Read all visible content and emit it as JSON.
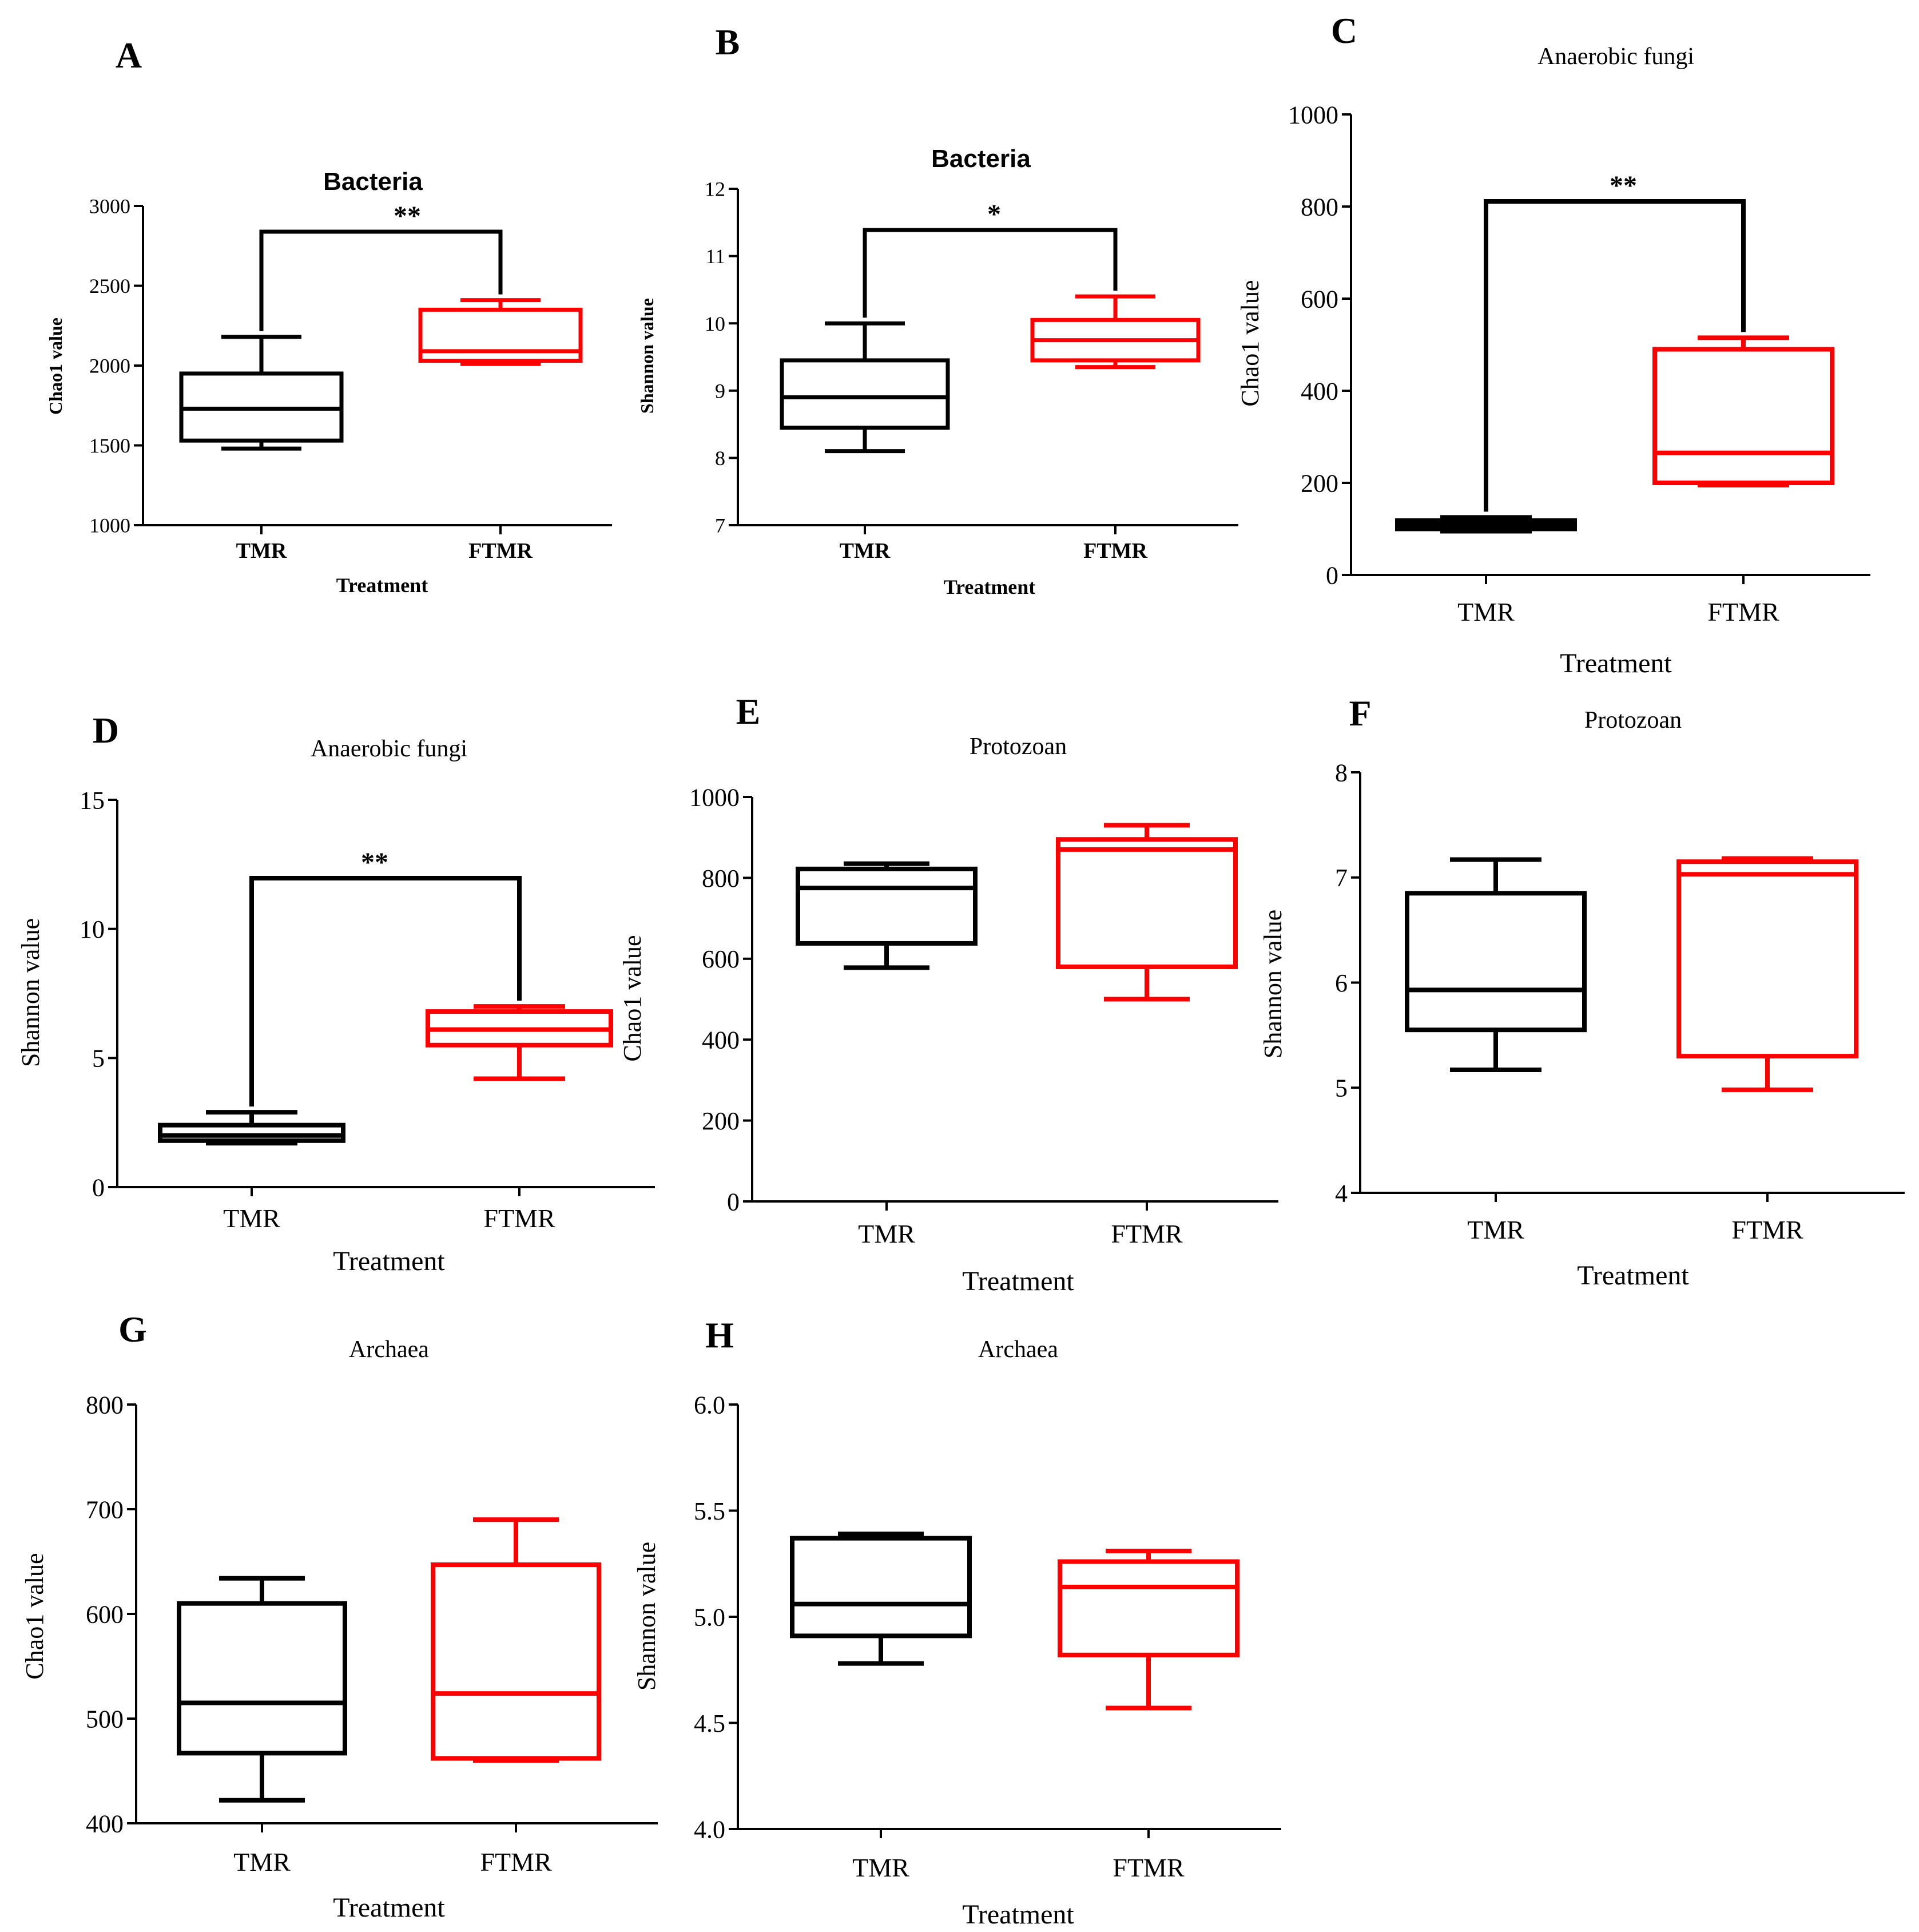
{
  "chart_data": [
    {
      "panel": "A",
      "type": "box",
      "title": "Bacteria",
      "xlabel": "Treatment",
      "ylabel": "Chao1 value",
      "ylim": [
        1000,
        3000
      ],
      "yticks": [
        1000,
        1500,
        2000,
        2500,
        3000
      ],
      "categories": [
        "TMR",
        "FTMR"
      ],
      "boxes": [
        {
          "category": "TMR",
          "color": "#000000",
          "min": 1480,
          "q1": 1530,
          "median": 1730,
          "q3": 1950,
          "max": 2180
        },
        {
          "category": "FTMR",
          "color": "#ff0000",
          "min": 2010,
          "q1": 2030,
          "median": 2090,
          "q3": 2350,
          "max": 2410
        }
      ],
      "significance": "**"
    },
    {
      "panel": "B",
      "type": "box",
      "title": "Bacteria",
      "xlabel": "Treatment",
      "ylabel": "Shannon value",
      "ylim": [
        7,
        12
      ],
      "yticks": [
        7,
        8,
        9,
        10,
        11,
        12
      ],
      "categories": [
        "TMR",
        "FTMR"
      ],
      "boxes": [
        {
          "category": "TMR",
          "color": "#000000",
          "min": 8.1,
          "q1": 8.45,
          "median": 8.9,
          "q3": 9.45,
          "max": 10.0
        },
        {
          "category": "FTMR",
          "color": "#ff0000",
          "min": 9.35,
          "q1": 9.45,
          "median": 9.75,
          "q3": 10.05,
          "max": 10.4
        }
      ],
      "significance": "*"
    },
    {
      "panel": "C",
      "type": "box",
      "title": "Anaerobic fungi",
      "xlabel": "Treatment",
      "ylabel": "Chao1 value",
      "ylim": [
        0,
        1000
      ],
      "yticks": [
        0,
        200,
        400,
        600,
        800,
        1000
      ],
      "categories": [
        "TMR",
        "FTMR"
      ],
      "boxes": [
        {
          "category": "TMR",
          "color": "#000000",
          "min": 95,
          "q1": 100,
          "median": 110,
          "q3": 118,
          "max": 125
        },
        {
          "category": "FTMR",
          "color": "#ff0000",
          "min": 195,
          "q1": 200,
          "median": 265,
          "q3": 490,
          "max": 515
        }
      ],
      "significance": "**"
    },
    {
      "panel": "D",
      "type": "box",
      "title": "Anaerobic fungi",
      "xlabel": "Treatment",
      "ylabel": "Shannon value",
      "ylim": [
        0,
        15
      ],
      "yticks": [
        0,
        5,
        10,
        15
      ],
      "categories": [
        "TMR",
        "FTMR"
      ],
      "boxes": [
        {
          "category": "TMR",
          "color": "#000000",
          "min": 1.7,
          "q1": 1.8,
          "median": 2.0,
          "q3": 2.4,
          "max": 2.9
        },
        {
          "category": "FTMR",
          "color": "#ff0000",
          "min": 4.2,
          "q1": 5.5,
          "median": 6.1,
          "q3": 6.8,
          "max": 7.0
        }
      ],
      "significance": "**"
    },
    {
      "panel": "E",
      "type": "box",
      "title": "Protozoan",
      "xlabel": "Treatment",
      "ylabel": "Chao1 value",
      "ylim": [
        0,
        1000
      ],
      "yticks": [
        0,
        200,
        400,
        600,
        800,
        1000
      ],
      "categories": [
        "TMR",
        "FTMR"
      ],
      "boxes": [
        {
          "category": "TMR",
          "color": "#000000",
          "min": 578,
          "q1": 638,
          "median": 775,
          "q3": 822,
          "max": 835
        },
        {
          "category": "FTMR",
          "color": "#ff0000",
          "min": 500,
          "q1": 580,
          "median": 870,
          "q3": 895,
          "max": 930
        }
      ],
      "significance": ""
    },
    {
      "panel": "F",
      "type": "box",
      "title": "Protozoan",
      "xlabel": "Treatment",
      "ylabel": "Shannon value",
      "ylim": [
        4,
        8
      ],
      "yticks": [
        4,
        5,
        6,
        7,
        8
      ],
      "categories": [
        "TMR",
        "FTMR"
      ],
      "boxes": [
        {
          "category": "TMR",
          "color": "#000000",
          "min": 5.17,
          "q1": 5.55,
          "median": 5.93,
          "q3": 6.85,
          "max": 7.17
        },
        {
          "category": "FTMR",
          "color": "#ff0000",
          "min": 4.98,
          "q1": 5.3,
          "median": 7.03,
          "q3": 7.15,
          "max": 7.18
        }
      ],
      "significance": ""
    },
    {
      "panel": "G",
      "type": "box",
      "title": "Archaea",
      "xlabel": "Treatment",
      "ylabel": "Chao1 value",
      "ylim": [
        400,
        800
      ],
      "yticks": [
        400,
        500,
        600,
        700,
        800
      ],
      "categories": [
        "TMR",
        "FTMR"
      ],
      "boxes": [
        {
          "category": "TMR",
          "color": "#000000",
          "min": 422,
          "q1": 467,
          "median": 515,
          "q3": 610,
          "max": 634
        },
        {
          "category": "FTMR",
          "color": "#ff0000",
          "min": 460,
          "q1": 462,
          "median": 524,
          "q3": 647,
          "max": 690
        }
      ],
      "significance": ""
    },
    {
      "panel": "H",
      "type": "box",
      "title": "Archaea",
      "xlabel": "Treatment",
      "ylabel": "Shannon value",
      "ylim": [
        4.0,
        6.0
      ],
      "yticks": [
        "4.0",
        "4.5",
        "5.0",
        "5.5",
        "6.0"
      ],
      "categories": [
        "TMR",
        "FTMR"
      ],
      "boxes": [
        {
          "category": "TMR",
          "color": "#000000",
          "min": 4.78,
          "q1": 4.91,
          "median": 5.06,
          "q3": 5.37,
          "max": 5.39
        },
        {
          "category": "FTMR",
          "color": "#ff0000",
          "min": 4.57,
          "q1": 4.82,
          "median": 5.14,
          "q3": 5.26,
          "max": 5.31
        }
      ],
      "significance": ""
    }
  ]
}
